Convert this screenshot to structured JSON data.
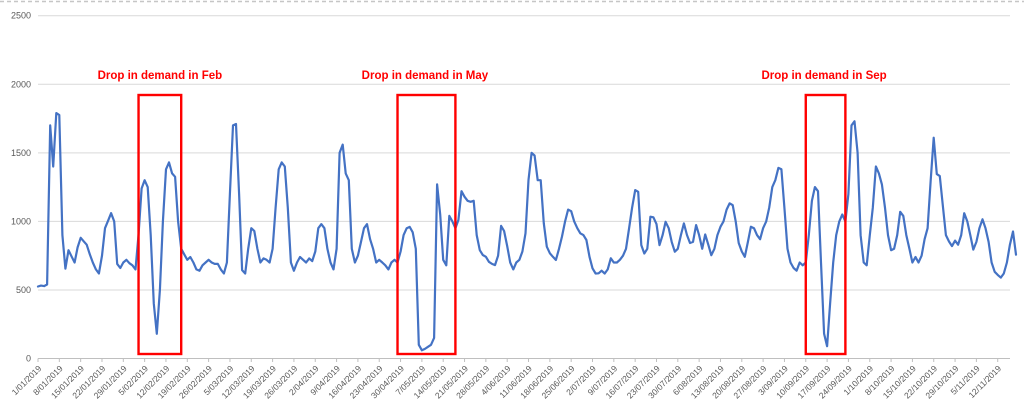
{
  "chart_data": {
    "type": "line",
    "title": "",
    "xlabel": "",
    "ylabel": "",
    "legend": "none",
    "grid": "horizontal",
    "y_axis_range": [
      0,
      2500
    ],
    "y_tick_labels": [
      "0",
      "500",
      "1000",
      "1500",
      "2000",
      "2500"
    ],
    "x_tick_interval_days": 7,
    "x_tick_labels": [
      "1/01/2019",
      "8/01/2019",
      "15/01/2019",
      "22/01/2019",
      "29/01/2019",
      "5/02/2019",
      "12/02/2019",
      "19/02/2019",
      "26/02/2019",
      "5/03/2019",
      "12/03/2019",
      "19/03/2019",
      "26/03/2019",
      "2/04/2019",
      "9/04/2019",
      "16/04/2019",
      "23/04/2019",
      "30/04/2019",
      "7/05/2019",
      "14/05/2019",
      "21/05/2019",
      "28/05/2019",
      "4/06/2019",
      "11/06/2019",
      "18/06/2019",
      "25/06/2019",
      "2/07/2019",
      "9/07/2019",
      "16/07/2019",
      "23/07/2019",
      "30/07/2019",
      "6/08/2019",
      "13/08/2019",
      "20/08/2019",
      "27/08/2019",
      "3/09/2019",
      "10/09/2019",
      "17/09/2019",
      "24/09/2019",
      "1/10/2019",
      "8/10/2019",
      "15/10/2019",
      "22/10/2019",
      "29/10/2019",
      "5/11/2019",
      "12/11/2019"
    ],
    "series": [
      {
        "name": "daily-demand",
        "start_date": "1/01/2019",
        "values": [
          525,
          532,
          528,
          540,
          1700,
          1400,
          1790,
          1775,
          900,
          655,
          790,
          745,
          700,
          810,
          880,
          855,
          830,
          760,
          700,
          650,
          620,
          750,
          950,
          1005,
          1060,
          1000,
          690,
          660,
          700,
          720,
          695,
          680,
          650,
          900,
          1240,
          1300,
          1250,
          900,
          400,
          180,
          500,
          1000,
          1380,
          1430,
          1350,
          1325,
          1000,
          800,
          760,
          720,
          740,
          700,
          650,
          640,
          680,
          700,
          720,
          700,
          690,
          690,
          650,
          620,
          700,
          1200,
          1700,
          1710,
          1200,
          645,
          620,
          800,
          950,
          930,
          800,
          700,
          730,
          720,
          700,
          800,
          1100,
          1380,
          1430,
          1400,
          1100,
          700,
          640,
          700,
          740,
          720,
          700,
          730,
          710,
          780,
          950,
          980,
          950,
          800,
          700,
          650,
          800,
          1500,
          1560,
          1350,
          1300,
          800,
          700,
          750,
          850,
          950,
          980,
          870,
          800,
          700,
          720,
          700,
          680,
          650,
          700,
          720,
          700,
          780,
          900,
          950,
          960,
          920,
          800,
          100,
          60,
          70,
          85,
          100,
          150,
          1270,
          1050,
          720,
          680,
          1040,
          1000,
          950,
          1010,
          1220,
          1180,
          1150,
          1143,
          1150,
          900,
          790,
          755,
          742,
          705,
          690,
          681,
          750,
          967,
          930,
          820,
          700,
          650,
          700,
          720,
          780,
          913,
          1302,
          1500,
          1480,
          1300,
          1300,
          986,
          815,
          767,
          742,
          718,
          800,
          890,
          1000,
          1086,
          1074,
          1000,
          950,
          913,
          900,
          864,
          742,
          658,
          620,
          621,
          640,
          620,
          650,
          731,
          700,
          700,
          720,
          750,
          800,
          950,
          1100,
          1228,
          1216,
          827,
          766,
          800,
          1034,
          1030,
          980,
          827,
          900,
          997,
          950,
          850,
          779,
          800,
          900,
          985,
          900,
          842,
          850,
          973,
          900,
          800,
          904,
          830,
          753,
          800,
          900,
          961,
          1000,
          1086,
          1131,
          1119,
          1000,
          842,
          780,
          742,
          850,
          961,
          950,
          900,
          870,
          950,
          1000,
          1100,
          1250,
          1300,
          1390,
          1380,
          1100,
          800,
          700,
          660,
          640,
          700,
          680,
          700,
          900,
          1150,
          1250,
          1220,
          700,
          180,
          90,
          400,
          700,
          900,
          1000,
          1050,
          1000,
          1200,
          1700,
          1730,
          1500,
          900,
          700,
          680,
          900,
          1100,
          1400,
          1350,
          1270,
          1100,
          900,
          790,
          800,
          900,
          1070,
          1040,
          900,
          800,
          700,
          740,
          700,
          750,
          870,
          950,
          1300,
          1610,
          1345,
          1330,
          1110,
          900,
          853,
          820,
          860,
          830,
          900,
          1060,
          1000,
          900,
          794,
          850,
          950,
          1015,
          950,
          850,
          700,
          632,
          610,
          590,
          620,
          700,
          830,
          926,
          757
        ]
      }
    ],
    "annotations": [
      {
        "id": "feb",
        "label": "Drop in demand in Feb",
        "box_start_day": 33,
        "box_end_day": 47,
        "text_center_day": 40
      },
      {
        "id": "may",
        "label": "Drop in demand in May",
        "box_start_day": 118,
        "box_end_day": 137,
        "text_center_day": 127
      },
      {
        "id": "sep",
        "label": "Drop in demand in Sep",
        "box_start_day": 252,
        "box_end_day": 265,
        "text_center_day": 258
      }
    ],
    "colors": {
      "line": "#4472C4",
      "annotation_text": "#FF0000",
      "annotation_box": "#FF0000",
      "gridline": "#D9D9D9",
      "axis_line": "#BFBFBF",
      "axis_label": "#595959",
      "background": "#FFFFFF",
      "top_border": "#C6C6C6"
    }
  }
}
